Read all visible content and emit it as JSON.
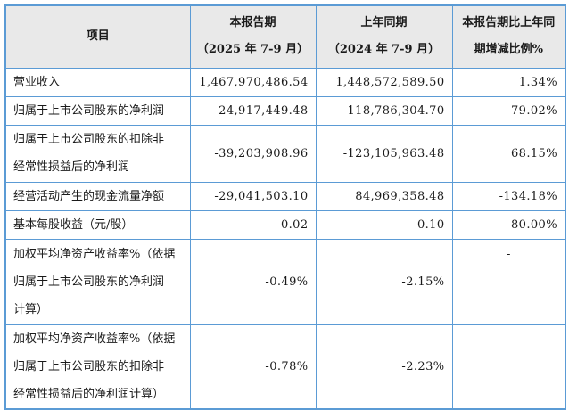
{
  "table": {
    "border_color": "#5B9BD5",
    "header_bg": "#E9E9E9",
    "columns": [
      {
        "label": "项目",
        "sub": ""
      },
      {
        "label": "本报告期",
        "sub": "（2025 年 7-9 月）"
      },
      {
        "label": "上年同期",
        "sub": "（2024 年 7-9 月）"
      },
      {
        "label": "本报告期比上年同",
        "sub": "期增减比例%"
      }
    ],
    "rows": [
      {
        "item": "营业收入",
        "current": "1,467,970,486.54",
        "prior": "1,448,572,589.50",
        "change": "1.34%"
      },
      {
        "item": "归属于上市公司股东的净利润",
        "current": "-24,917,449.48",
        "prior": "-118,786,304.70",
        "change": "79.02%"
      },
      {
        "item": "归属于上市公司股东的扣除非\n经常性损益后的净利润",
        "current": "-39,203,908.96",
        "prior": "-123,105,963.48",
        "change": "68.15%"
      },
      {
        "item": "经营活动产生的现金流量净额",
        "current": "-29,041,503.10",
        "prior": "84,969,358.48",
        "change": "-134.18%"
      },
      {
        "item": "基本每股收益（元/股）",
        "current": "-0.02",
        "prior": "-0.10",
        "change": "80.00%"
      },
      {
        "item": "加权平均净资产收益率%（依据\n归属于上市公司股东的净利润\n计算）",
        "current": "-0.49%",
        "prior": "-2.15%",
        "change": "-"
      },
      {
        "item": "加权平均净资产收益率%（依据\n归属于上市公司股东的扣除非\n经常性损益后的净利润计算）",
        "current": "-0.78%",
        "prior": "-2.23%",
        "change": "-"
      }
    ]
  }
}
